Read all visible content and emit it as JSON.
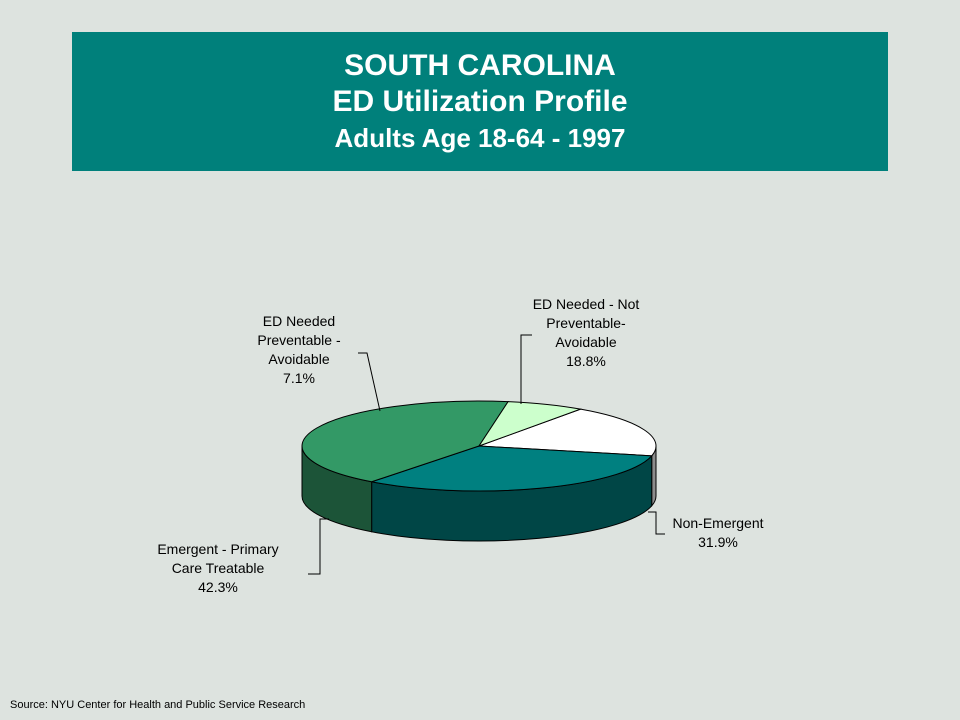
{
  "title": {
    "line1": "SOUTH CAROLINA",
    "line2": "ED Utilization Profile",
    "line3": "Adults Age 18-64 - 1997"
  },
  "source": "Source:  NYU Center for Health and Public Service Research",
  "chart_data": {
    "type": "pie",
    "style": "3d",
    "slices": [
      {
        "label": [
          "ED Needed - Not",
          "Preventable-",
          "Avoidable"
        ],
        "value": 18.8,
        "value_label": "18.8%",
        "color": "#ffffff"
      },
      {
        "label": [
          "Non-Emergent"
        ],
        "value": 31.9,
        "value_label": "31.9%",
        "color": "#008080"
      },
      {
        "label": [
          "Emergent - Primary",
          "Care Treatable"
        ],
        "value": 42.3,
        "value_label": "42.3%",
        "color": "#339966"
      },
      {
        "label": [
          "ED Needed",
          "Preventable -",
          "Avoidable"
        ],
        "value": 7.1,
        "value_label": "7.1%",
        "color": "#ccffcc"
      }
    ]
  }
}
